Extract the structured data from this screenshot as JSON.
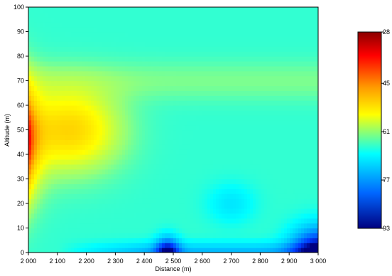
{
  "chart_data": {
    "type": "heatmap",
    "xlabel": "Distance (m)",
    "ylabel": "Altitude (m)",
    "xlim": [
      2000,
      3000
    ],
    "ylim": [
      0,
      100
    ],
    "x_ticks": [
      {
        "value": 2000,
        "label": "2 000"
      },
      {
        "value": 2100,
        "label": "2 100"
      },
      {
        "value": 2200,
        "label": "2 200"
      },
      {
        "value": 2300,
        "label": "2 300"
      },
      {
        "value": 2400,
        "label": "2 400"
      },
      {
        "value": 2500,
        "label": "2 500"
      },
      {
        "value": 2600,
        "label": "2 600"
      },
      {
        "value": 2700,
        "label": "2 700"
      },
      {
        "value": 2800,
        "label": "2 800"
      },
      {
        "value": 2900,
        "label": "2 900"
      },
      {
        "value": 3000,
        "label": "3 000"
      }
    ],
    "y_ticks": [
      {
        "value": 0,
        "label": "0"
      },
      {
        "value": 10,
        "label": "10"
      },
      {
        "value": 20,
        "label": "20"
      },
      {
        "value": 30,
        "label": "30"
      },
      {
        "value": 40,
        "label": "40"
      },
      {
        "value": 50,
        "label": "50"
      },
      {
        "value": 60,
        "label": "60"
      },
      {
        "value": 70,
        "label": "70"
      },
      {
        "value": 80,
        "label": "80"
      },
      {
        "value": 90,
        "label": "90"
      },
      {
        "value": 100,
        "label": "100"
      }
    ],
    "colorbar": {
      "range": [
        28,
        93
      ],
      "reversed": true,
      "ticks": [
        {
          "value": 28,
          "label": "28"
        },
        {
          "value": 45,
          "label": "45"
        },
        {
          "value": 61,
          "label": "61"
        },
        {
          "value": 77,
          "label": "77"
        },
        {
          "value": 93,
          "label": "93"
        }
      ],
      "colors": [
        "#ff0000",
        "#ff9900",
        "#ffff00",
        "#00ffff",
        "#0000ff",
        "#000080"
      ]
    },
    "grid": false,
    "colorbar_placement": "right"
  }
}
